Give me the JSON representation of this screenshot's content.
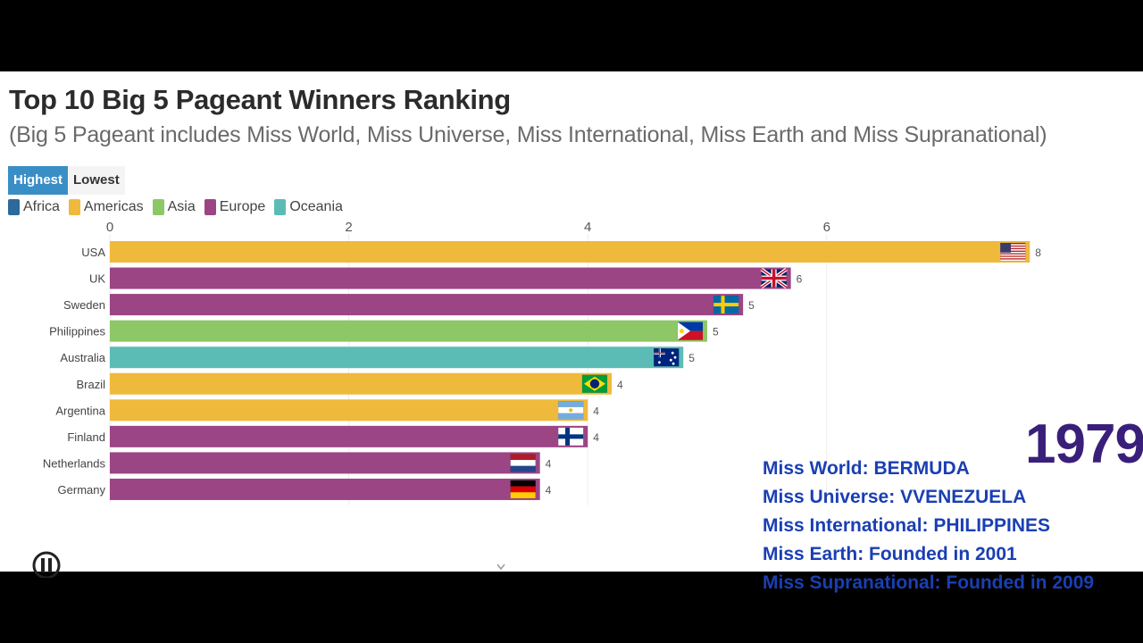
{
  "header": {
    "title": "Top 10 Big 5 Pageant Winners Ranking",
    "subtitle": "(Big 5 Pageant includes Miss World, Miss Universe, Miss International, Miss Earth and Miss Supranational)"
  },
  "toggle": {
    "highest": "Highest",
    "lowest": "Lowest",
    "selected": "Highest"
  },
  "legend": [
    {
      "label": "Africa",
      "color": "#2d6a9a"
    },
    {
      "label": "Americas",
      "color": "#efb93b"
    },
    {
      "label": "Asia",
      "color": "#8dc766"
    },
    {
      "label": "Europe",
      "color": "#9b4585"
    },
    {
      "label": "Oceania",
      "color": "#5bbcb6"
    }
  ],
  "year": "1979",
  "info_lines": [
    "Miss World: BERMUDA",
    "Miss Universe: VVENEZUELA",
    "Miss International: PHILIPPINES",
    "Miss Earth: Founded in 2001",
    "Miss Supranational: Founded in 2009"
  ],
  "chart_data": {
    "type": "bar",
    "orientation": "horizontal",
    "title": "Top 10 Big 5 Pageant Winners Ranking",
    "xlim": [
      0,
      7.7
    ],
    "ticks": [
      0,
      2,
      4,
      6
    ],
    "grid": true,
    "legend_position": "top-left",
    "categories": [
      "USA",
      "UK",
      "Sweden",
      "Philippines",
      "Australia",
      "Brazil",
      "Argentina",
      "Finland",
      "Netherlands",
      "Germany"
    ],
    "values": [
      7.7,
      5.7,
      5.3,
      5.0,
      4.8,
      4.2,
      4.0,
      4.0,
      3.6,
      3.6
    ],
    "labels": [
      "8",
      "6",
      "5",
      "5",
      "5",
      "4",
      "4",
      "4",
      "4",
      "4"
    ],
    "regions": [
      "Americas",
      "Europe",
      "Europe",
      "Asia",
      "Oceania",
      "Americas",
      "Americas",
      "Europe",
      "Europe",
      "Europe"
    ],
    "flags": [
      "usa-flag-icon",
      "uk-flag-icon",
      "sweden-flag-icon",
      "philippines-flag-icon",
      "australia-flag-icon",
      "brazil-flag-icon",
      "argentina-flag-icon",
      "finland-flag-icon",
      "netherlands-flag-icon",
      "germany-flag-icon"
    ]
  }
}
